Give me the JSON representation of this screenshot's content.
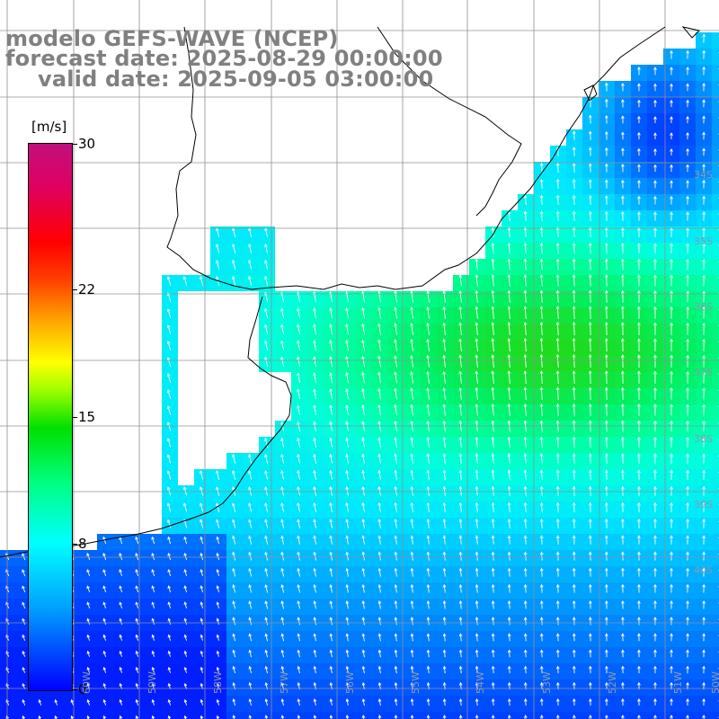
{
  "title": {
    "line1": "modelo GEFS-WAVE (NCEP)",
    "line2": "forecast date: 2025-08-29 00:00:00",
    "line3": "valid date: 2025-09-05 03:00:00"
  },
  "colorbar": {
    "units": "[m/s]",
    "ticks": [
      "30",
      "22",
      "15",
      "8",
      "0"
    ],
    "tick_values": [
      30,
      22,
      15,
      8,
      0
    ],
    "colors": [
      "#0000ff",
      "#00a0ff",
      "#00ffff",
      "#00ff80",
      "#00e000",
      "#ffff00",
      "#ffa000",
      "#ff0000",
      "#c0107c"
    ]
  },
  "grid": {
    "lon_labels": [
      "60W",
      "59W",
      "58W",
      "57W",
      "56W",
      "55W",
      "54W",
      "53W",
      "52W",
      "51W",
      "50W"
    ],
    "lat_labels": [
      "34S",
      "35S",
      "36S",
      "37S",
      "38S",
      "39S",
      "40S"
    ]
  },
  "colors": {
    "land": "#ffffff",
    "grid_line": "#909090",
    "coast": "#000000",
    "arrow": "#ffffff",
    "label": "#808080"
  }
}
